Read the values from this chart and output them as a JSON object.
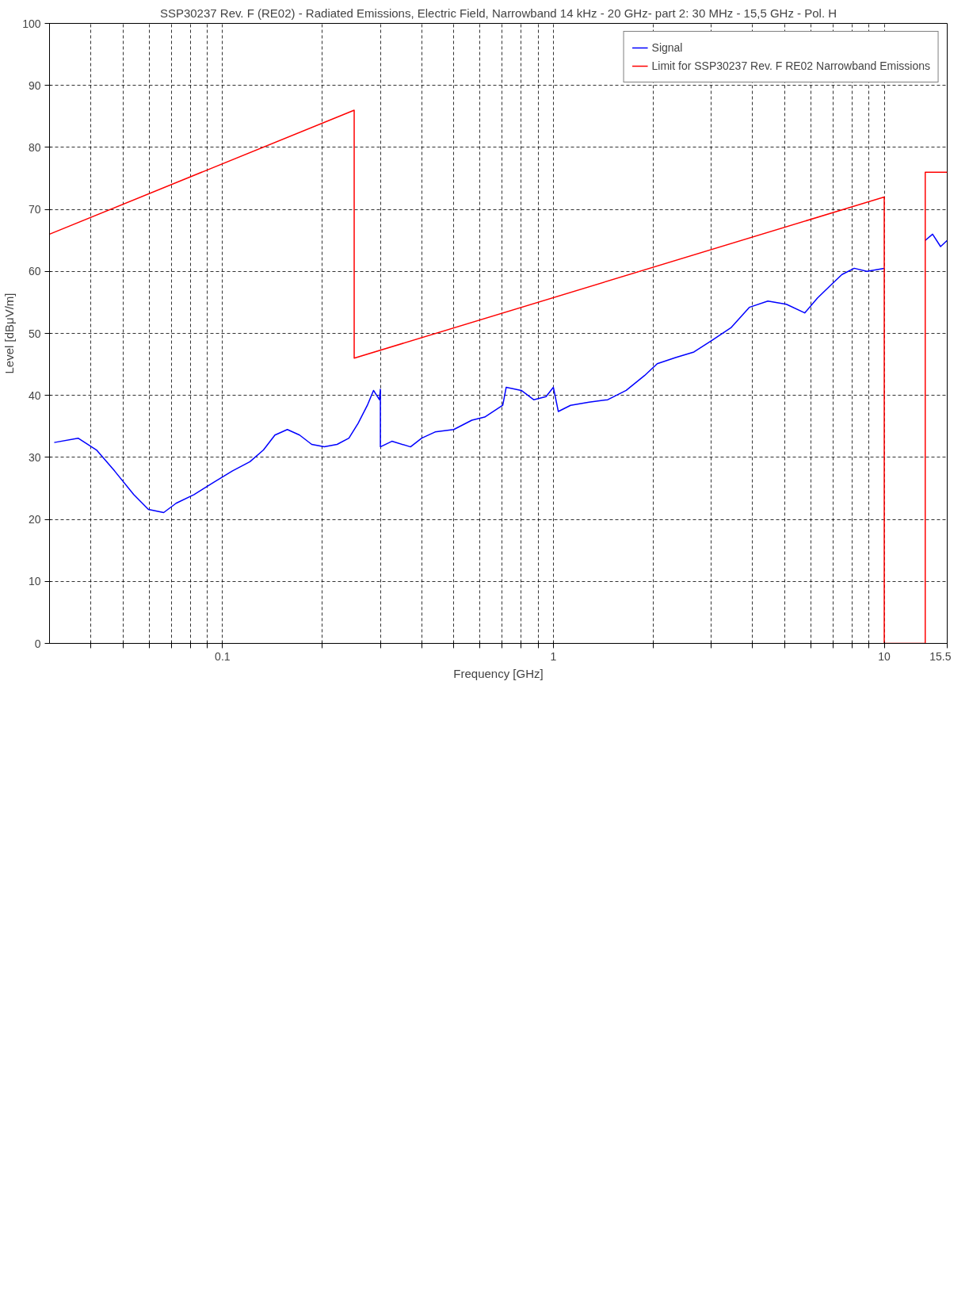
{
  "chart_data": {
    "type": "line",
    "title": "SSP30237 Rev. F (RE02) - Radiated Emissions, Electric Field, Narrowband 14 kHz - 20 GHz- part 2: 30 MHz - 15,5 GHz - Pol. H",
    "xlabel": "Frequency [GHz]",
    "ylabel": "Level [dBμV/m]",
    "log": "x",
    "xlim": [
      0.03,
      15.5
    ],
    "ylim": [
      0,
      100
    ],
    "xticks": [
      {
        "value": 0.04,
        "label": null
      },
      {
        "value": 0.05,
        "label": null
      },
      {
        "value": 0.06,
        "label": null
      },
      {
        "value": 0.07,
        "label": null
      },
      {
        "value": 0.08,
        "label": null
      },
      {
        "value": 0.09,
        "label": null
      },
      0.1,
      {
        "value": 0.2,
        "label": null
      },
      {
        "value": 0.3,
        "label": null
      },
      {
        "value": 0.4,
        "label": null
      },
      {
        "value": 0.5,
        "label": null
      },
      {
        "value": 0.6,
        "label": null
      },
      {
        "value": 0.7,
        "label": null
      },
      {
        "value": 0.8,
        "label": null
      },
      {
        "value": 0.9,
        "label": null
      },
      1,
      {
        "value": 2,
        "label": null
      },
      {
        "value": 3,
        "label": null
      },
      {
        "value": 4,
        "label": null
      },
      {
        "value": 5,
        "label": null
      },
      {
        "value": 6,
        "label": null
      },
      {
        "value": 7,
        "label": null
      },
      {
        "value": 8,
        "label": null
      },
      {
        "value": 9,
        "label": null
      },
      10,
      15.5
    ],
    "yticks": [
      0,
      10,
      20,
      30,
      40,
      50,
      60,
      70,
      80,
      90,
      100
    ],
    "grid": true,
    "legend": "top right",
    "line_style": "solid",
    "series": [
      {
        "name": "Signal",
        "color": "#0000ff",
        "x": [
          0.031,
          0.0366,
          0.0416,
          0.0472,
          0.0539,
          0.0597,
          0.0664,
          0.0724,
          0.082,
          0.0936,
          0.107,
          0.121,
          0.133,
          0.144,
          0.157,
          0.171,
          0.186,
          0.203,
          0.222,
          0.241,
          0.257,
          0.274,
          0.286,
          0.298,
          0.3,
          0.3,
          0.325,
          0.37,
          0.4,
          0.439,
          0.5,
          0.567,
          0.62,
          0.703,
          0.72,
          0.8,
          0.872,
          0.95,
          1.0,
          1.035,
          1.127,
          1.282,
          1.46,
          1.66,
          1.886,
          2.06,
          2.34,
          2.66,
          3.02,
          3.44,
          3.91,
          4.45,
          5.06,
          5.75,
          6.28,
          6.84,
          7.45,
          8.12,
          8.86,
          10.0,
          11.5,
          13.3,
          14.0,
          14.8,
          15.5
        ],
        "values": [
          32.4,
          33.1,
          31.2,
          27.8,
          24.0,
          21.6,
          21.1,
          22.6,
          24.0,
          25.9,
          27.8,
          29.3,
          31.2,
          33.6,
          34.5,
          33.6,
          32.1,
          31.7,
          32.1,
          33.1,
          35.5,
          38.4,
          40.8,
          39.3,
          41.0,
          31.7,
          32.6,
          31.7,
          33.1,
          34.1,
          34.5,
          36.0,
          36.5,
          38.4,
          41.3,
          40.8,
          39.3,
          39.8,
          41.3,
          37.4,
          38.4,
          38.9,
          39.3,
          40.8,
          43.2,
          45.1,
          46.1,
          47.0,
          48.9,
          50.9,
          54.2,
          55.2,
          54.7,
          53.3,
          55.7,
          57.6,
          59.5,
          60.5,
          60.0,
          60.5,
          null,
          65.0,
          66.0,
          64.0,
          65.0
        ]
      },
      {
        "name": "Limit for SSP30237 Rev. F RE02 Narrowband Emissions",
        "color": "#ff0000",
        "x": [
          0.03,
          0.25,
          0.25,
          10,
          10,
          13.3,
          13.3,
          15.5
        ],
        "values": [
          66,
          86,
          46,
          72,
          0,
          0,
          76,
          76
        ]
      }
    ]
  }
}
